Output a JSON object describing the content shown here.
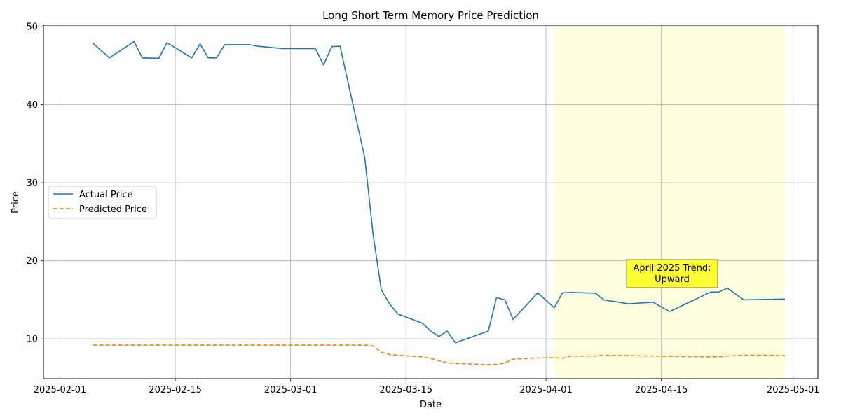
{
  "chart_data": {
    "type": "line",
    "title": "Long Short Term Memory Price Prediction",
    "xlabel": "Date",
    "ylabel": "Price",
    "x_ticks": [
      "2025-02-01",
      "2025-02-15",
      "2025-03-01",
      "2025-03-15",
      "2025-04-01",
      "2025-04-15",
      "2025-05-01"
    ],
    "y_ticks": [
      10,
      20,
      30,
      40,
      50
    ],
    "xlim": [
      "2025-01-30",
      "2025-05-04"
    ],
    "ylim": [
      4.9,
      50.2
    ],
    "grid": true,
    "legend_position": "center-left",
    "series": [
      {
        "name": "Actual Price",
        "color": "#1f77b4",
        "style": "solid",
        "points": [
          [
            "2025-02-05",
            47.9
          ],
          [
            "2025-02-07",
            46.0
          ],
          [
            "2025-02-10",
            48.1
          ],
          [
            "2025-02-11",
            46.0
          ],
          [
            "2025-02-13",
            45.95
          ],
          [
            "2025-02-14",
            47.95
          ],
          [
            "2025-02-17",
            46.0
          ],
          [
            "2025-02-18",
            47.8
          ],
          [
            "2025-02-19",
            46.0
          ],
          [
            "2025-02-20",
            46.0
          ],
          [
            "2025-02-21",
            47.7
          ],
          [
            "2025-02-24",
            47.7
          ],
          [
            "2025-02-25",
            47.5
          ],
          [
            "2025-02-28",
            47.2
          ],
          [
            "2025-03-03",
            47.2
          ],
          [
            "2025-03-04",
            47.2
          ],
          [
            "2025-03-05",
            45.1
          ],
          [
            "2025-03-06",
            47.45
          ],
          [
            "2025-03-07",
            47.5
          ],
          [
            "2025-03-10",
            33.2
          ],
          [
            "2025-03-11",
            23.5
          ],
          [
            "2025-03-12",
            16.3
          ],
          [
            "2025-03-13",
            14.5
          ],
          [
            "2025-03-14",
            13.2
          ],
          [
            "2025-03-17",
            12.0
          ],
          [
            "2025-03-18",
            11.0
          ],
          [
            "2025-03-19",
            10.3
          ],
          [
            "2025-03-20",
            11.0
          ],
          [
            "2025-03-21",
            9.5
          ],
          [
            "2025-03-25",
            11.0
          ],
          [
            "2025-03-26",
            15.3
          ],
          [
            "2025-03-27",
            15.0
          ],
          [
            "2025-03-28",
            12.5
          ],
          [
            "2025-03-31",
            15.9
          ],
          [
            "2025-04-02",
            14.0
          ],
          [
            "2025-04-03",
            15.9
          ],
          [
            "2025-04-04",
            15.95
          ],
          [
            "2025-04-07",
            15.85
          ],
          [
            "2025-04-08",
            15.0
          ],
          [
            "2025-04-11",
            14.5
          ],
          [
            "2025-04-14",
            14.7
          ],
          [
            "2025-04-16",
            13.5
          ],
          [
            "2025-04-21",
            16.0
          ],
          [
            "2025-04-22",
            16.0
          ],
          [
            "2025-04-23",
            16.5
          ],
          [
            "2025-04-25",
            15.0
          ],
          [
            "2025-04-28",
            15.05
          ],
          [
            "2025-04-30",
            15.1
          ]
        ]
      },
      {
        "name": "Predicted Price",
        "color": "#ff7f0e",
        "style": "dashed",
        "points": [
          [
            "2025-02-05",
            9.2
          ],
          [
            "2025-03-10",
            9.2
          ],
          [
            "2025-03-11",
            9.1
          ],
          [
            "2025-03-12",
            8.3
          ],
          [
            "2025-03-13",
            8.0
          ],
          [
            "2025-03-14",
            7.9
          ],
          [
            "2025-03-17",
            7.7
          ],
          [
            "2025-03-18",
            7.5
          ],
          [
            "2025-03-19",
            7.2
          ],
          [
            "2025-03-20",
            6.95
          ],
          [
            "2025-03-21",
            6.85
          ],
          [
            "2025-03-25",
            6.7
          ],
          [
            "2025-03-26",
            6.75
          ],
          [
            "2025-03-27",
            6.9
          ],
          [
            "2025-03-28",
            7.4
          ],
          [
            "2025-03-31",
            7.55
          ],
          [
            "2025-04-02",
            7.6
          ],
          [
            "2025-04-03",
            7.5
          ],
          [
            "2025-04-04",
            7.8
          ],
          [
            "2025-04-07",
            7.8
          ],
          [
            "2025-04-08",
            7.9
          ],
          [
            "2025-04-11",
            7.85
          ],
          [
            "2025-04-14",
            7.8
          ],
          [
            "2025-04-16",
            7.75
          ],
          [
            "2025-04-21",
            7.7
          ],
          [
            "2025-04-22",
            7.7
          ],
          [
            "2025-04-23",
            7.8
          ],
          [
            "2025-04-25",
            7.9
          ],
          [
            "2025-04-28",
            7.9
          ],
          [
            "2025-04-30",
            7.85
          ]
        ]
      }
    ],
    "highlight": {
      "start": "2025-04-02",
      "end": "2025-04-30",
      "color": "#ffffcc"
    },
    "annotation": {
      "lines": [
        "April 2025 Trend:",
        "Upward"
      ],
      "x": "2025-04-15",
      "y": 17.5,
      "background": "#ffff33"
    }
  }
}
